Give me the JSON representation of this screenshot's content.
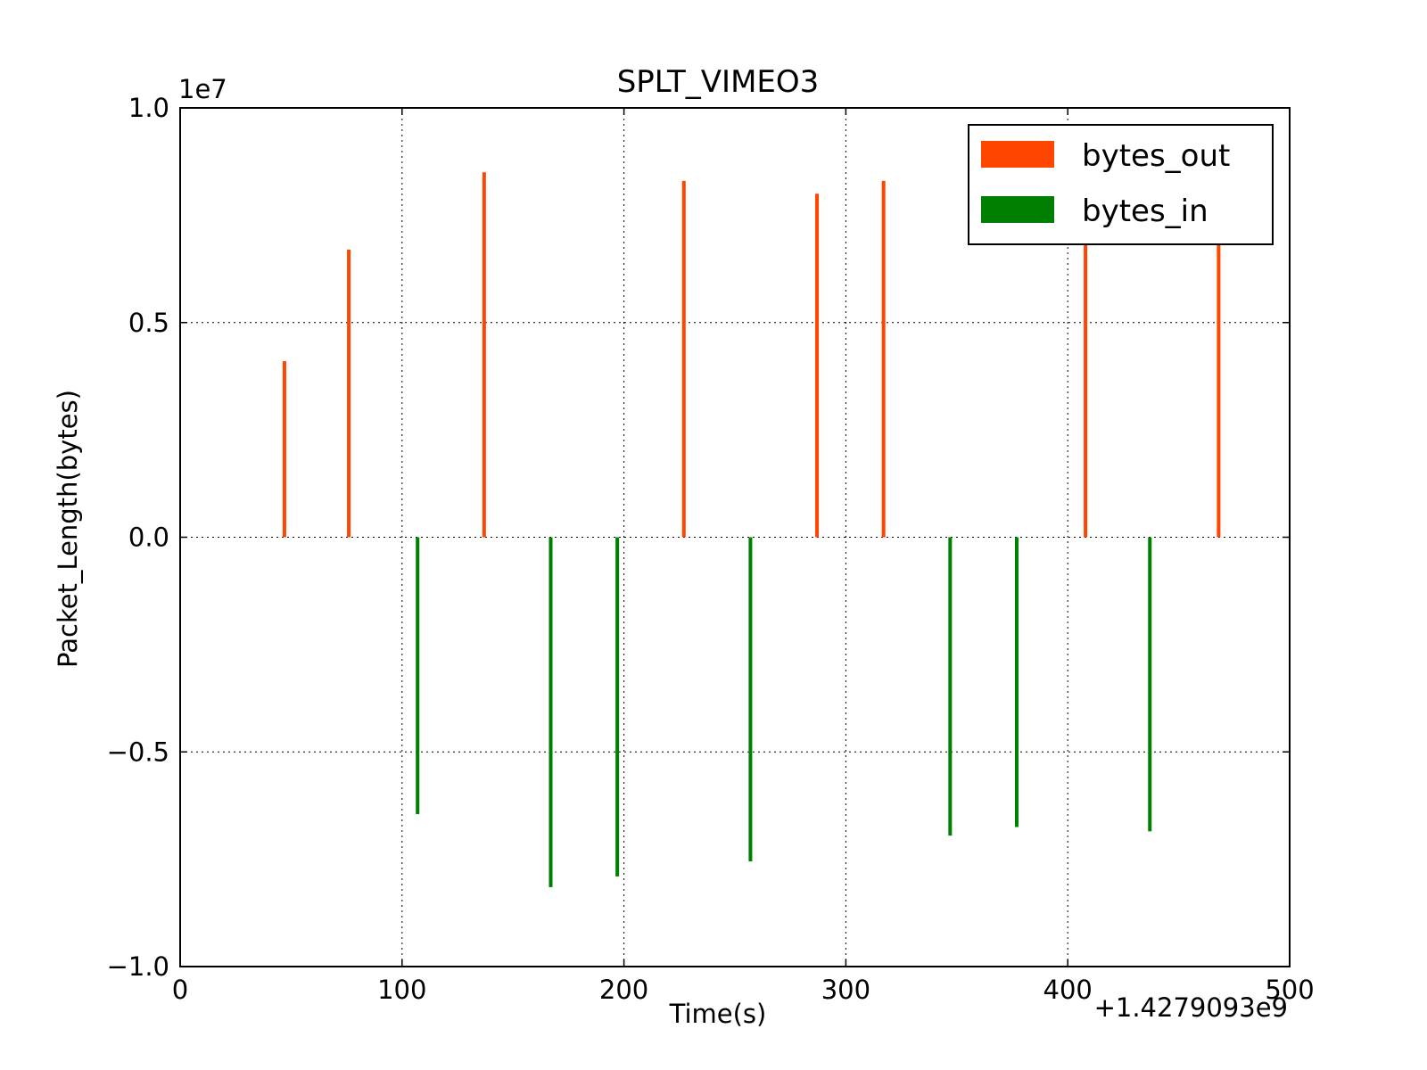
{
  "chart_data": {
    "type": "bar",
    "title": "SPLT_VIMEO3",
    "xlabel": "Time(s)",
    "ylabel": "Packet_Length(bytes)",
    "xlim": [
      0,
      500
    ],
    "ylim": [
      -1.0,
      1.0
    ],
    "x_offset_text": "+1.4279093e9",
    "y_scale_text": "1e7",
    "x_ticks": [
      "0",
      "100",
      "200",
      "300",
      "400",
      "500"
    ],
    "y_ticks": [
      "1.0",
      "0.5",
      "0.0",
      "−0.5",
      "−1.0"
    ],
    "grid": true,
    "legend_position": "top-right",
    "series": [
      {
        "name": "bytes_out",
        "color": "#ff4500",
        "x": [
          47,
          76,
          137,
          227,
          287,
          317,
          408,
          468
        ],
        "values": [
          0.41,
          0.67,
          0.85,
          0.83,
          0.8,
          0.83,
          0.72,
          0.72
        ]
      },
      {
        "name": "bytes_in",
        "color": "#008000",
        "x": [
          107,
          167,
          197,
          257,
          347,
          377,
          437
        ],
        "values": [
          -0.645,
          -0.815,
          -0.79,
          -0.755,
          -0.695,
          -0.675,
          -0.685
        ]
      }
    ]
  }
}
